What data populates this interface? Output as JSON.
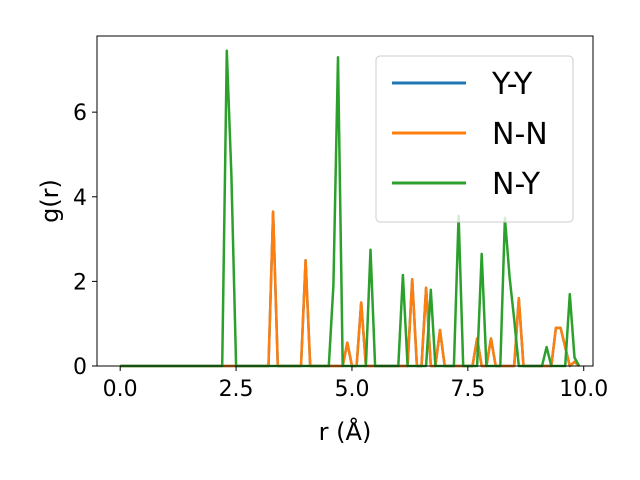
{
  "chart_data": {
    "type": "line",
    "title": "",
    "xlabel": "r (Å)",
    "ylabel": "g(r)",
    "xlim": [
      -0.5,
      10.2
    ],
    "ylim": [
      0,
      7.8
    ],
    "xticks": [
      0.0,
      2.5,
      5.0,
      7.5,
      10.0
    ],
    "xtick_labels": [
      "0.0",
      "2.5",
      "5.0",
      "7.5",
      "10.0"
    ],
    "yticks": [
      0,
      2,
      4,
      6
    ],
    "ytick_labels": [
      "0",
      "2",
      "4",
      "6"
    ],
    "grid": false,
    "legend_position": "top-right",
    "series": [
      {
        "name": "Y-Y",
        "color": "#1f77b4",
        "x": [
          0.0,
          3.2,
          3.3,
          3.4,
          3.9,
          4.0,
          4.1,
          4.8,
          4.9,
          5.0,
          5.1,
          5.2,
          5.3,
          6.2,
          6.3,
          6.4,
          6.5,
          6.6,
          6.7,
          6.8,
          6.9,
          7.0,
          7.6,
          7.7,
          7.8,
          7.9,
          8.0,
          8.1,
          8.5,
          8.6,
          8.7,
          8.8,
          9.3,
          9.4,
          9.5,
          9.6,
          9.7,
          9.8,
          9.9
        ],
        "y": [
          0,
          0,
          3.65,
          0,
          0,
          2.5,
          0,
          0,
          0.55,
          0,
          0,
          1.5,
          0,
          0,
          2.05,
          0,
          0,
          1.85,
          0,
          0,
          0.85,
          0,
          0,
          0.65,
          0,
          0,
          0.65,
          0,
          0,
          1.6,
          0,
          0,
          0,
          0.9,
          0.9,
          0.45,
          0,
          0.1,
          0
        ]
      },
      {
        "name": "N-N",
        "color": "#ff7f0e",
        "x": [
          0.0,
          3.2,
          3.3,
          3.4,
          3.9,
          4.0,
          4.1,
          4.8,
          4.9,
          5.0,
          5.1,
          5.2,
          5.3,
          6.2,
          6.3,
          6.4,
          6.5,
          6.6,
          6.7,
          6.8,
          6.9,
          7.0,
          7.6,
          7.7,
          7.8,
          7.9,
          8.0,
          8.1,
          8.5,
          8.6,
          8.7,
          8.8,
          9.3,
          9.4,
          9.5,
          9.6,
          9.7,
          9.8,
          9.9
        ],
        "y": [
          0,
          0,
          3.65,
          0,
          0,
          2.5,
          0,
          0,
          0.55,
          0,
          0,
          1.5,
          0,
          0,
          2.05,
          0,
          0,
          1.85,
          0,
          0,
          0.85,
          0,
          0,
          0.65,
          0,
          0,
          0.65,
          0,
          0,
          1.6,
          0,
          0,
          0,
          0.9,
          0.9,
          0.45,
          0,
          0.1,
          0
        ]
      },
      {
        "name": "N-Y",
        "color": "#2ca02c",
        "x": [
          0.0,
          2.2,
          2.3,
          2.4,
          2.5,
          4.5,
          4.6,
          4.7,
          4.8,
          5.3,
          5.4,
          5.5,
          6.0,
          6.1,
          6.2,
          6.6,
          6.7,
          6.8,
          7.2,
          7.3,
          7.4,
          7.7,
          7.8,
          7.9,
          8.2,
          8.3,
          8.4,
          8.5,
          8.6,
          9.1,
          9.2,
          9.3,
          9.6,
          9.7,
          9.8,
          9.9
        ],
        "y": [
          0,
          0,
          7.45,
          4.5,
          0,
          0,
          1.9,
          7.3,
          0,
          0,
          2.75,
          0,
          0,
          2.15,
          0,
          0,
          1.8,
          0,
          0,
          3.55,
          0,
          0,
          2.65,
          0,
          0,
          3.5,
          2.1,
          1.1,
          0,
          0,
          0.45,
          0,
          0,
          1.7,
          0.2,
          0
        ]
      }
    ]
  }
}
